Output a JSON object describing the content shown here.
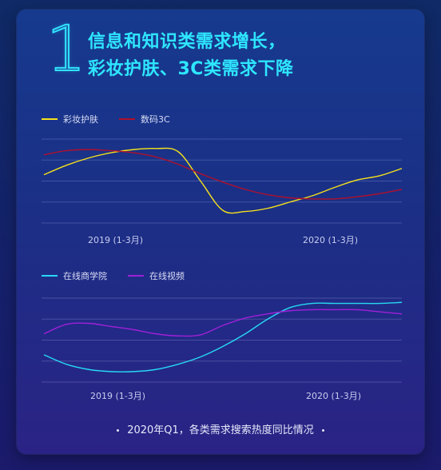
{
  "number": "1",
  "headline": {
    "line1": "信息和知识类需求增长，",
    "line2": "彩妆护肤、3C类需求下降"
  },
  "footer": "2020年Q1，各类需求搜索热度同比情况",
  "chart_data": [
    {
      "type": "line",
      "title": "",
      "categories": [
        "2019 (1-3月)",
        "2020 (1-3月)"
      ],
      "x": [
        0,
        0.5,
        1,
        1.5,
        2,
        2.5,
        3,
        3.5,
        4,
        4.5,
        5,
        5.5,
        6,
        6.5,
        7,
        7.5,
        8
      ],
      "series": [
        {
          "name": "彩妆护肤",
          "color": "#f5e21a",
          "values": [
            2.3,
            2.75,
            3.1,
            3.35,
            3.5,
            3.55,
            3.4,
            2.0,
            0.6,
            0.55,
            0.7,
            1.0,
            1.3,
            1.7,
            2.05,
            2.25,
            2.6
          ]
        },
        {
          "name": "数码3C",
          "color": "#b0102c",
          "values": [
            3.25,
            3.45,
            3.5,
            3.45,
            3.35,
            3.15,
            2.8,
            2.35,
            1.95,
            1.6,
            1.35,
            1.2,
            1.15,
            1.15,
            1.25,
            1.4,
            1.6
          ]
        }
      ],
      "ylim": [
        0,
        4
      ],
      "grid": true,
      "legend": "top-left"
    },
    {
      "type": "line",
      "title": "",
      "categories": [
        "2019 (1-3月)",
        "2020 (1-3月)"
      ],
      "x": [
        0,
        0.5,
        1,
        1.5,
        2,
        2.5,
        3,
        3.5,
        4,
        4.5,
        5,
        5.5,
        6,
        6.5,
        7,
        7.5,
        8
      ],
      "series": [
        {
          "name": "在线商学院",
          "color": "#27d8f5",
          "values": [
            1.3,
            0.85,
            0.6,
            0.5,
            0.5,
            0.6,
            0.85,
            1.2,
            1.7,
            2.3,
            3.0,
            3.55,
            3.75,
            3.75,
            3.75,
            3.75,
            3.8
          ]
        },
        {
          "name": "在线视频",
          "color": "#a020d8",
          "values": [
            2.3,
            2.75,
            2.8,
            2.65,
            2.5,
            2.3,
            2.2,
            2.25,
            2.7,
            3.05,
            3.25,
            3.4,
            3.45,
            3.45,
            3.45,
            3.35,
            3.25
          ]
        }
      ],
      "ylim": [
        0,
        4
      ],
      "grid": true,
      "legend": "top-left"
    }
  ]
}
